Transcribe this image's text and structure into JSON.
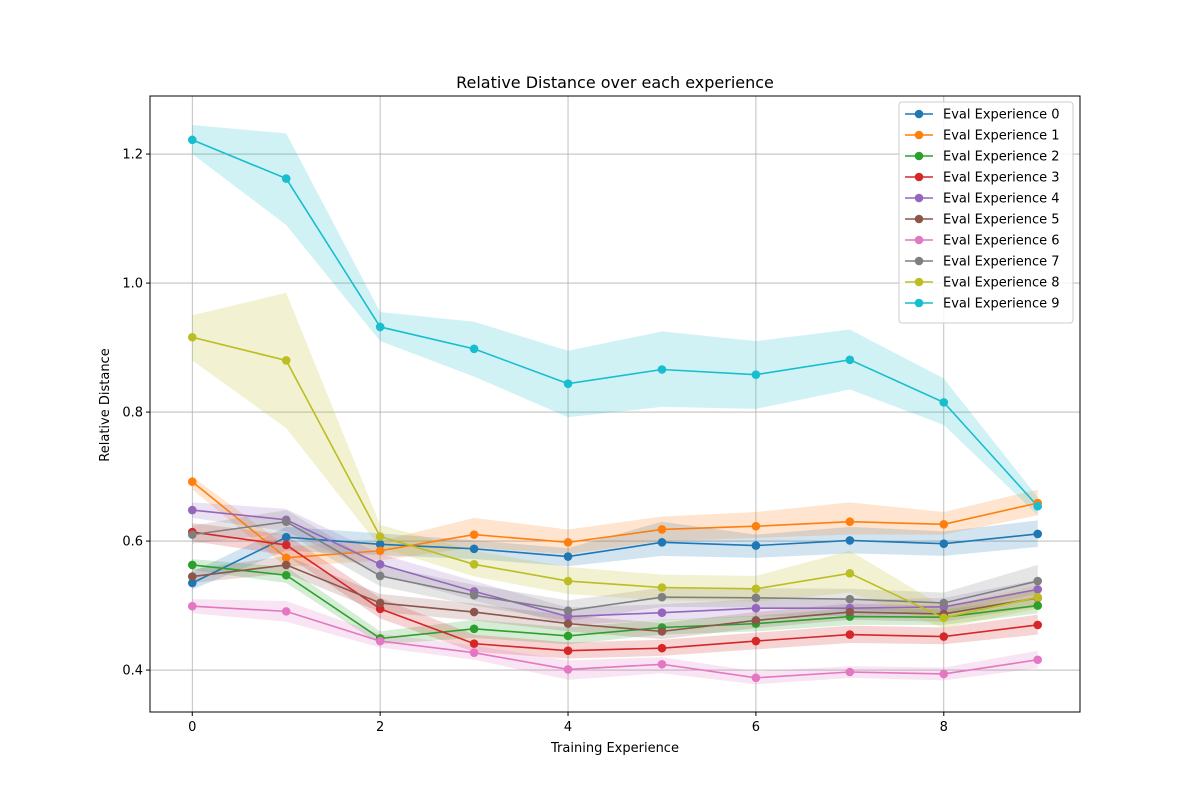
{
  "chart_data": {
    "type": "line",
    "title": "Relative Distance over each experience",
    "xlabel": "Training Experience",
    "ylabel": "Relative Distance",
    "xlim": [
      -0.45,
      9.45
    ],
    "ylim": [
      0.335,
      1.29
    ],
    "xticks": [
      0,
      2,
      4,
      6,
      8
    ],
    "yticks": [
      0.4,
      0.6,
      0.8,
      1.0,
      1.2
    ],
    "xtick_labels": [
      "0",
      "2",
      "4",
      "6",
      "8"
    ],
    "ytick_labels": [
      "0.4",
      "0.6",
      "0.8",
      "1.0",
      "1.2"
    ],
    "grid": true,
    "legend_position": "top-right",
    "x": [
      0,
      1,
      2,
      3,
      4,
      5,
      6,
      7,
      8,
      9
    ],
    "series": [
      {
        "name": "Eval Experience 0",
        "color": "#1f77b4",
        "values": [
          0.535,
          0.606,
          0.595,
          0.588,
          0.576,
          0.598,
          0.593,
          0.601,
          0.596,
          0.611
        ],
        "lower": [
          0.525,
          0.585,
          0.578,
          0.572,
          0.561,
          0.577,
          0.574,
          0.581,
          0.577,
          0.591
        ],
        "upper": [
          0.552,
          0.622,
          0.612,
          0.601,
          0.589,
          0.63,
          0.61,
          0.622,
          0.615,
          0.632
        ]
      },
      {
        "name": "Eval Experience 1",
        "color": "#ff7f0e",
        "values": [
          0.692,
          0.574,
          0.585,
          0.61,
          0.598,
          0.618,
          0.623,
          0.63,
          0.626,
          0.659
        ],
        "lower": [
          0.68,
          0.56,
          0.57,
          0.59,
          0.58,
          0.6,
          0.605,
          0.61,
          0.61,
          0.64
        ],
        "upper": [
          0.7,
          0.592,
          0.6,
          0.636,
          0.618,
          0.638,
          0.645,
          0.66,
          0.645,
          0.68
        ]
      },
      {
        "name": "Eval Experience 2",
        "color": "#2ca02c",
        "values": [
          0.563,
          0.547,
          0.449,
          0.464,
          0.453,
          0.466,
          0.472,
          0.483,
          0.482,
          0.5
        ],
        "lower": [
          0.555,
          0.535,
          0.44,
          0.45,
          0.44,
          0.455,
          0.46,
          0.47,
          0.47,
          0.488
        ],
        "upper": [
          0.572,
          0.56,
          0.46,
          0.478,
          0.466,
          0.478,
          0.484,
          0.496,
          0.494,
          0.512
        ]
      },
      {
        "name": "Eval Experience 3",
        "color": "#d62728",
        "values": [
          0.614,
          0.594,
          0.495,
          0.441,
          0.43,
          0.434,
          0.445,
          0.455,
          0.452,
          0.47
        ],
        "lower": [
          0.6,
          0.578,
          0.48,
          0.428,
          0.418,
          0.422,
          0.432,
          0.442,
          0.44,
          0.455
        ],
        "upper": [
          0.628,
          0.61,
          0.512,
          0.455,
          0.443,
          0.447,
          0.458,
          0.469,
          0.466,
          0.486
        ]
      },
      {
        "name": "Eval Experience 4",
        "color": "#9467bd",
        "values": [
          0.648,
          0.633,
          0.564,
          0.522,
          0.483,
          0.489,
          0.496,
          0.496,
          0.498,
          0.525
        ],
        "lower": [
          0.636,
          0.615,
          0.548,
          0.508,
          0.47,
          0.477,
          0.483,
          0.484,
          0.485,
          0.51
        ],
        "upper": [
          0.66,
          0.65,
          0.58,
          0.538,
          0.497,
          0.502,
          0.51,
          0.509,
          0.512,
          0.54
        ]
      },
      {
        "name": "Eval Experience 5",
        "color": "#8c564b",
        "values": [
          0.545,
          0.563,
          0.504,
          0.49,
          0.472,
          0.46,
          0.477,
          0.49,
          0.487,
          0.512
        ],
        "lower": [
          0.535,
          0.55,
          0.49,
          0.477,
          0.46,
          0.448,
          0.465,
          0.478,
          0.475,
          0.498
        ],
        "upper": [
          0.556,
          0.577,
          0.518,
          0.503,
          0.485,
          0.473,
          0.49,
          0.503,
          0.5,
          0.526
        ]
      },
      {
        "name": "Eval Experience 6",
        "color": "#e377c2",
        "values": [
          0.499,
          0.491,
          0.445,
          0.427,
          0.401,
          0.409,
          0.388,
          0.397,
          0.394,
          0.416
        ],
        "lower": [
          0.488,
          0.475,
          0.435,
          0.416,
          0.385,
          0.395,
          0.378,
          0.388,
          0.384,
          0.403
        ],
        "upper": [
          0.51,
          0.507,
          0.456,
          0.438,
          0.415,
          0.42,
          0.398,
          0.406,
          0.404,
          0.43
        ]
      },
      {
        "name": "Eval Experience 7",
        "color": "#7f7f7f",
        "values": [
          0.61,
          0.63,
          0.546,
          0.516,
          0.492,
          0.513,
          0.512,
          0.51,
          0.504,
          0.538
        ],
        "lower": [
          0.596,
          0.612,
          0.53,
          0.5,
          0.476,
          0.498,
          0.497,
          0.494,
          0.488,
          0.518
        ],
        "upper": [
          0.624,
          0.648,
          0.562,
          0.532,
          0.508,
          0.528,
          0.527,
          0.526,
          0.52,
          0.563
        ]
      },
      {
        "name": "Eval Experience 8",
        "color": "#bcbd22",
        "values": [
          0.916,
          0.88,
          0.607,
          0.564,
          0.538,
          0.528,
          0.526,
          0.55,
          0.481,
          0.513
        ],
        "lower": [
          0.88,
          0.775,
          0.59,
          0.545,
          0.518,
          0.508,
          0.506,
          0.52,
          0.465,
          0.495
        ],
        "upper": [
          0.95,
          0.985,
          0.625,
          0.585,
          0.56,
          0.548,
          0.546,
          0.585,
          0.498,
          0.532
        ]
      },
      {
        "name": "Eval Experience 9",
        "color": "#17becf",
        "values": [
          1.222,
          1.162,
          0.932,
          0.898,
          0.844,
          0.866,
          0.858,
          0.881,
          0.815,
          0.654
        ],
        "lower": [
          1.2,
          1.09,
          0.91,
          0.855,
          0.792,
          0.808,
          0.805,
          0.835,
          0.78,
          0.64
        ],
        "upper": [
          1.245,
          1.232,
          0.955,
          0.94,
          0.895,
          0.925,
          0.91,
          0.928,
          0.852,
          0.668
        ]
      }
    ]
  }
}
